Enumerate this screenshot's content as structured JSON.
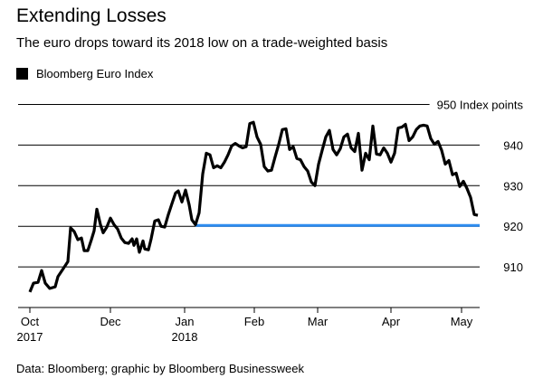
{
  "chart_data": {
    "type": "line",
    "title": "Extending Losses",
    "subtitle": "The euro drops toward its 2018 low on a trade-weighted basis",
    "source": "Data: Bloomberg; graphic by Bloomberg Businessweek",
    "xlim": [
      0,
      204
    ],
    "xticks": [
      {
        "value": 5.2,
        "label": "Oct 2017"
      },
      {
        "value": 40.8,
        "label": "Dec"
      },
      {
        "value": 73.6,
        "label": "Jan 2018"
      },
      {
        "value": 104.4,
        "label": "Feb"
      },
      {
        "value": 132.4,
        "label": "Mar"
      },
      {
        "value": 164.8,
        "label": "Apr"
      },
      {
        "value": 196,
        "label": "May"
      }
    ],
    "ylim": [
      900,
      951
    ],
    "yticks": [
      910,
      920,
      930,
      940,
      {
        "value": 950,
        "label": "950 Index points"
      }
    ],
    "grid": true,
    "series": [
      {
        "name": "Bloomberg Euro Index",
        "color": "#000000",
        "x": [
          5.2,
          6.8,
          8.8,
          10.4,
          12,
          14,
          16.4,
          17.6,
          20,
          22,
          23.2,
          24.8,
          26.4,
          28,
          29.2,
          30.8,
          32.4,
          33.6,
          34.8,
          36.4,
          37.6,
          39.2,
          40.8,
          42.4,
          44,
          45.6,
          47.2,
          48.8,
          50.4,
          51.2,
          52.4,
          53.6,
          55.2,
          56,
          57.6,
          58.8,
          60.4,
          62,
          63.2,
          64.8,
          66.4,
          68,
          69.6,
          70.8,
          72.4,
          74,
          75.6,
          76.8,
          78.4,
          80,
          81.6,
          83.2,
          84.8,
          86.4,
          88,
          89.6,
          91.2,
          92.8,
          94.4,
          96,
          97.6,
          99.2,
          100.8,
          102.4,
          104,
          105.6,
          107.2,
          108.8,
          110.4,
          112,
          113.6,
          115.2,
          116.8,
          118.4,
          120,
          121.6,
          123.2,
          124.8,
          126.4,
          128,
          129.6,
          131.2,
          132.8,
          134.4,
          136,
          137.6,
          139.2,
          140.8,
          142.4,
          144,
          145.6,
          147.2,
          148.8,
          150.4,
          152,
          153.6,
          155.2,
          156.8,
          158.4,
          160,
          161.6,
          163.2,
          164.8,
          166.4,
          168,
          169.6,
          171.2,
          172.8,
          174.4,
          176,
          177.6,
          179.2,
          180.8,
          182.4,
          184,
          185.6,
          187.2,
          188.8,
          190.4,
          192,
          193.6,
          195.2,
          196.8,
          198.4,
          200,
          201.6,
          203.2
        ],
        "values": [
          903.8,
          906.0,
          906.2,
          909.1,
          906.0,
          904.7,
          905.1,
          907.6,
          909.6,
          911.3,
          919.6,
          918.7,
          916.7,
          917.1,
          914.0,
          914.0,
          916.7,
          918.9,
          924.2,
          920.4,
          918.4,
          919.8,
          922.0,
          920.4,
          919.3,
          917.1,
          916.0,
          915.8,
          916.9,
          915.3,
          916.9,
          913.6,
          916.4,
          914.4,
          914.2,
          916.9,
          921.3,
          921.6,
          920.0,
          919.8,
          922.9,
          925.6,
          928.2,
          928.7,
          926.0,
          928.9,
          925.3,
          921.6,
          920.4,
          923.3,
          932.9,
          938.0,
          937.6,
          934.4,
          934.9,
          934.4,
          935.8,
          937.6,
          939.8,
          940.4,
          939.8,
          939.3,
          939.6,
          945.3,
          945.6,
          942.0,
          940.2,
          934.7,
          933.6,
          933.8,
          937.1,
          940.2,
          943.8,
          944.0,
          938.9,
          939.6,
          936.7,
          936.4,
          934.7,
          933.6,
          930.9,
          930.0,
          935.3,
          938.7,
          942.0,
          943.6,
          938.9,
          937.6,
          939.1,
          942.0,
          942.7,
          939.3,
          938.4,
          942.9,
          933.8,
          938.0,
          936.4,
          944.7,
          937.8,
          937.6,
          939.3,
          938.0,
          935.8,
          938.0,
          944.2,
          944.4,
          945.1,
          941.1,
          942.0,
          943.8,
          944.7,
          944.9,
          944.7,
          941.6,
          940.2,
          940.9,
          938.7,
          935.3,
          936.2,
          932.7,
          933.1,
          929.8,
          931.1,
          929.3,
          927.1,
          922.9,
          922.7
        ]
      }
    ],
    "reference_line": {
      "value": 920.2,
      "x": [
        78.4,
        204
      ],
      "color": "#2d8cf0"
    }
  }
}
